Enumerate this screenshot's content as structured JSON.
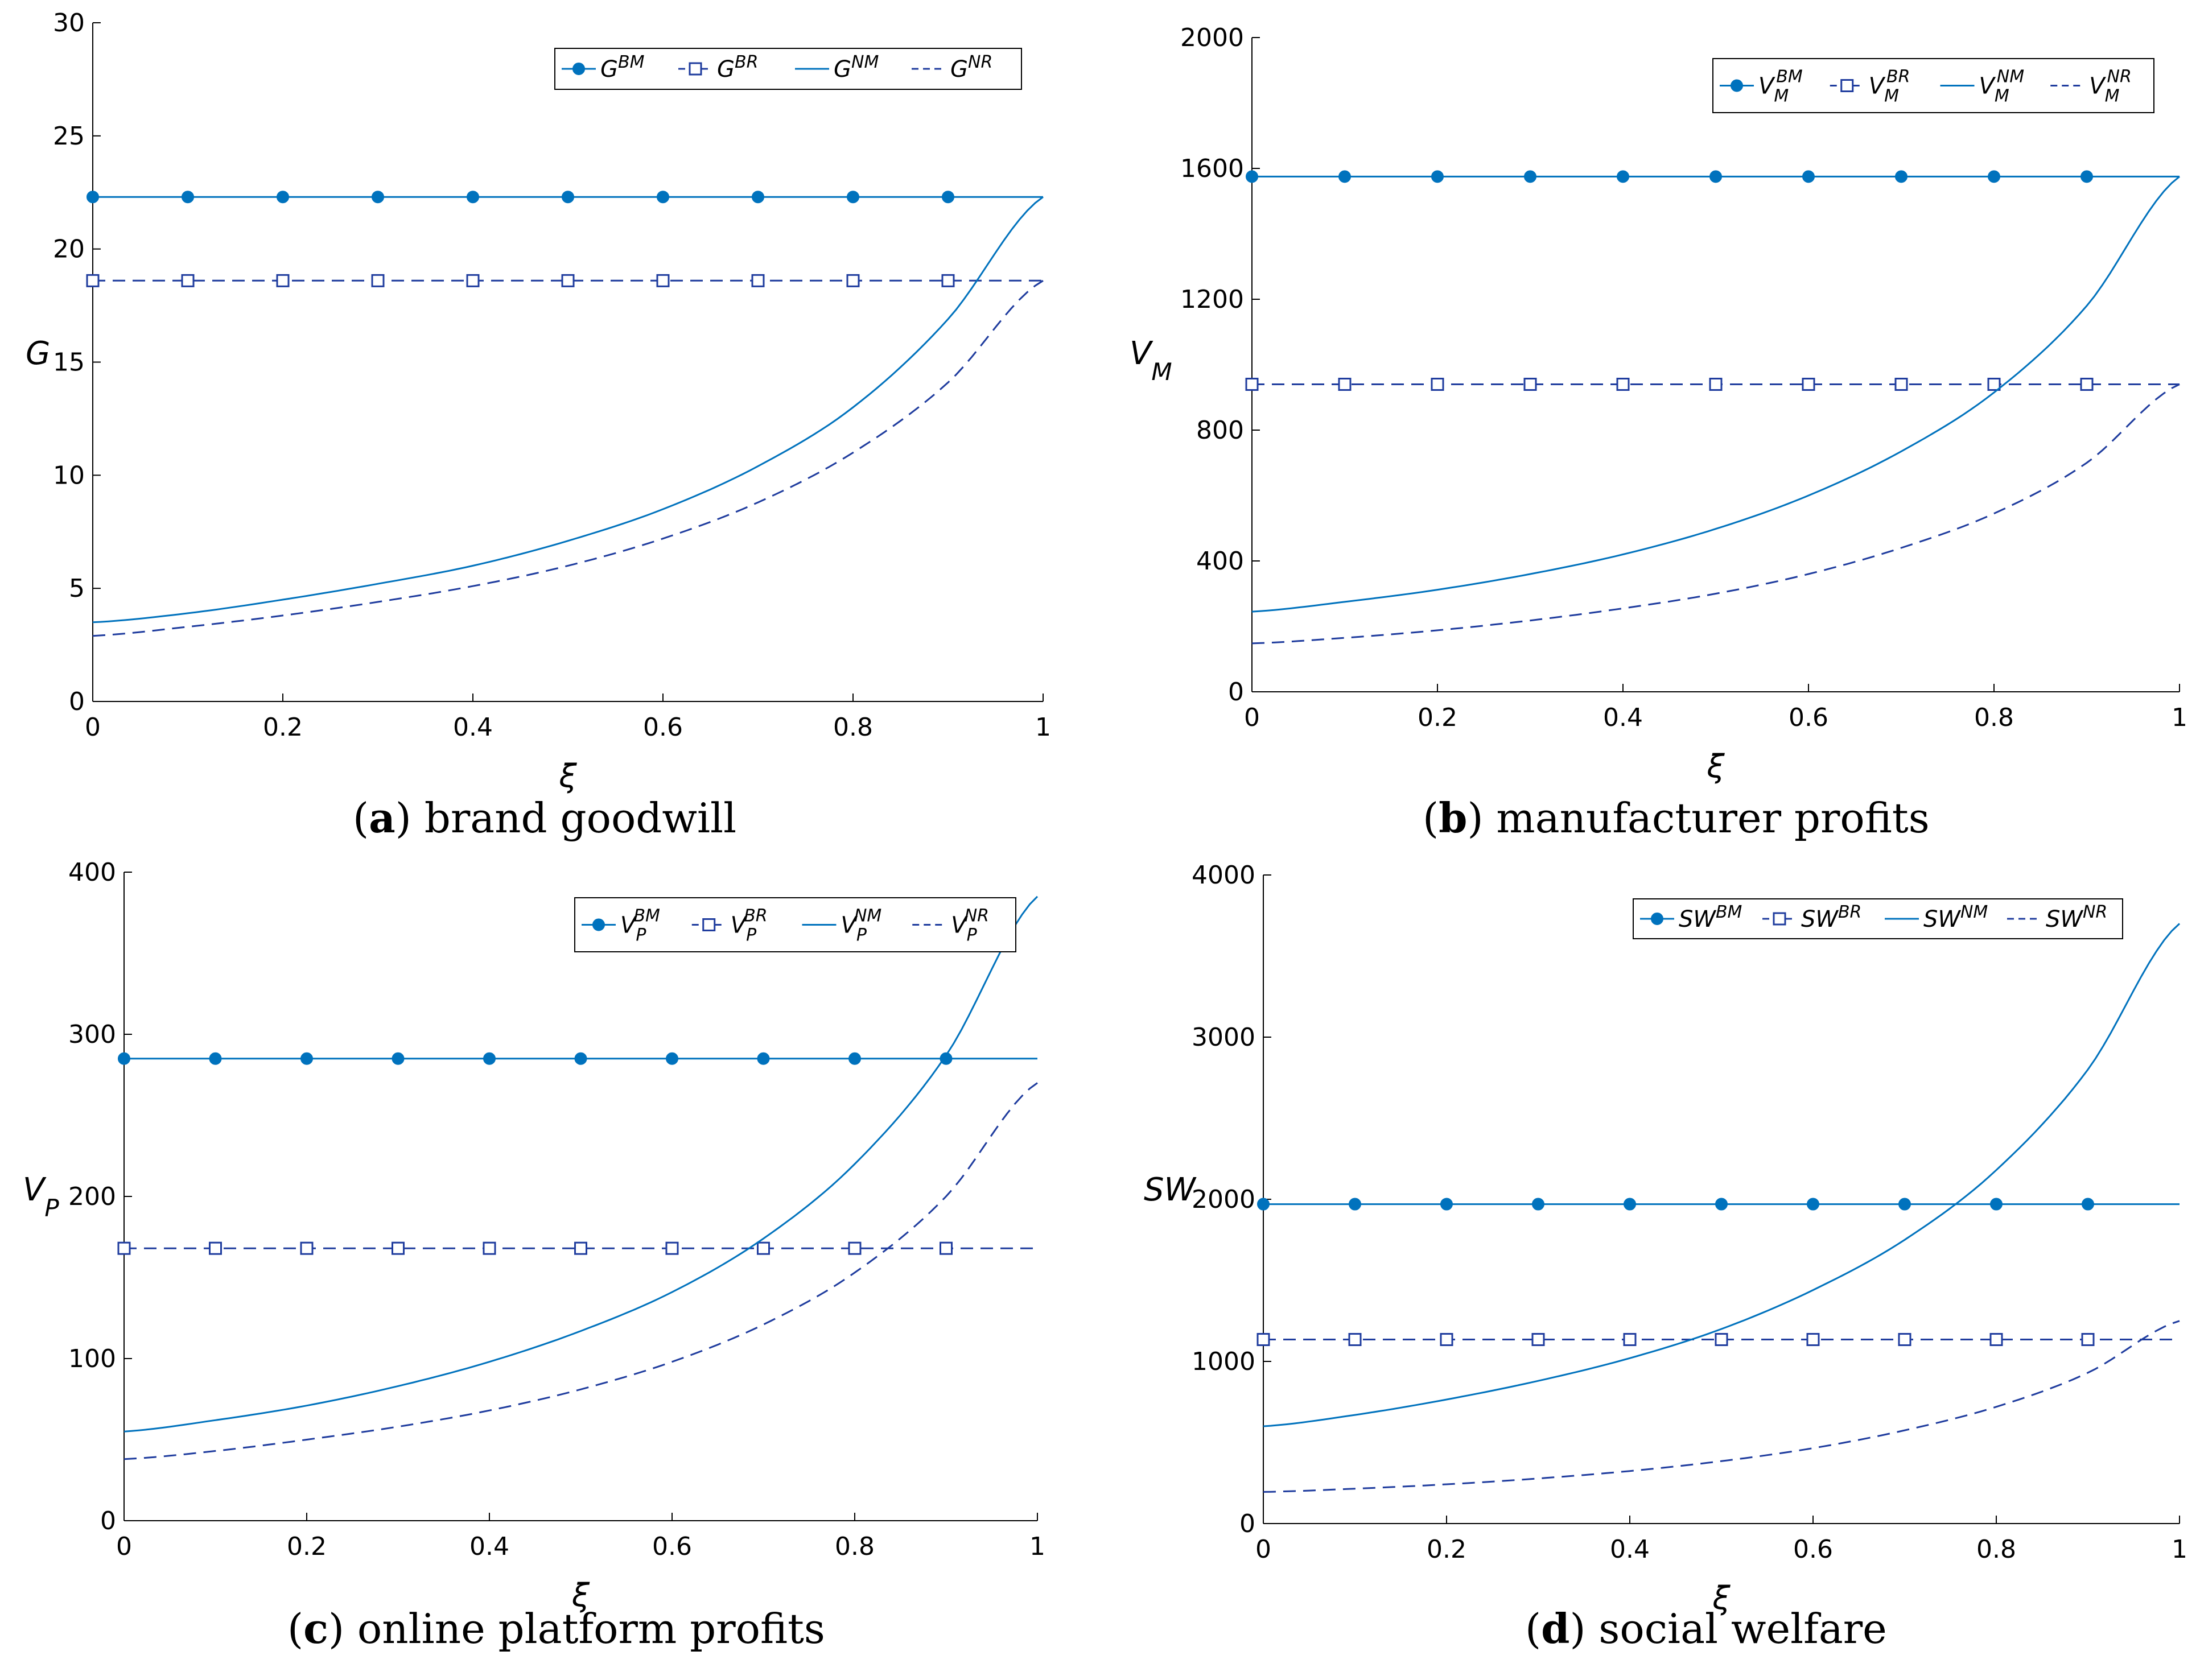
{
  "colors": {
    "series_solid": "#0072BD",
    "series_dashed": "#1F3C9E",
    "axis": "#000000"
  },
  "chart_data": [
    {
      "id": "a",
      "type": "line",
      "caption_letter": "a",
      "caption_text": " brand goodwill",
      "xlabel": "ξ",
      "ylabel": "G",
      "ylabel_sub": "",
      "xlim": [
        0,
        1
      ],
      "ylim": [
        0,
        30
      ],
      "xticks": [
        "0",
        "0.2",
        "0.4",
        "0.6",
        "0.8",
        "1"
      ],
      "yticks": [
        "0",
        "5",
        "10",
        "15",
        "20",
        "25",
        "30"
      ],
      "legend_location": "top-right",
      "series": [
        {
          "name": "BM",
          "legend_base": "G",
          "legend_sub": "",
          "legend_sup": "BM",
          "style": "solid-dot",
          "x": [
            0,
            1
          ],
          "y": [
            22.3,
            22.3
          ]
        },
        {
          "name": "BR",
          "legend_base": "G",
          "legend_sub": "",
          "legend_sup": "BR",
          "style": "dashed-square",
          "x": [
            0,
            1
          ],
          "y": [
            18.6,
            18.6
          ]
        },
        {
          "name": "NM",
          "legend_base": "G",
          "legend_sub": "",
          "legend_sup": "NM",
          "style": "solid",
          "x": [
            0,
            0.1,
            0.2,
            0.3,
            0.4,
            0.5,
            0.6,
            0.7,
            0.8,
            0.9,
            1.0
          ],
          "y": [
            3.5,
            3.9,
            4.5,
            5.2,
            6.0,
            7.1,
            8.5,
            10.4,
            13.0,
            16.9,
            22.3
          ]
        },
        {
          "name": "NR",
          "legend_base": "G",
          "legend_sub": "",
          "legend_sup": "NR",
          "style": "dashed",
          "x": [
            0,
            0.1,
            0.2,
            0.3,
            0.4,
            0.5,
            0.6,
            0.7,
            0.8,
            0.9,
            1.0
          ],
          "y": [
            2.9,
            3.3,
            3.8,
            4.4,
            5.1,
            6.0,
            7.2,
            8.8,
            11.0,
            14.1,
            18.6
          ]
        }
      ]
    },
    {
      "id": "b",
      "type": "line",
      "caption_letter": "b",
      "caption_text": " manufacturer profits",
      "xlabel": "ξ",
      "ylabel": "V",
      "ylabel_sub": "M",
      "xlim": [
        0,
        1
      ],
      "ylim": [
        0,
        2000
      ],
      "xticks": [
        "0",
        "0.2",
        "0.4",
        "0.6",
        "0.8",
        "1"
      ],
      "yticks": [
        "0",
        "400",
        "800",
        "1200",
        "1600",
        "2000"
      ],
      "legend_location": "top-right",
      "series": [
        {
          "name": "BM",
          "legend_base": "V",
          "legend_sub": "M",
          "legend_sup": "BM",
          "style": "solid-dot",
          "x": [
            0,
            1
          ],
          "y": [
            1575,
            1575
          ]
        },
        {
          "name": "BR",
          "legend_base": "V",
          "legend_sub": "M",
          "legend_sup": "BR",
          "style": "dashed-square",
          "x": [
            0,
            1
          ],
          "y": [
            940,
            940
          ]
        },
        {
          "name": "NM",
          "legend_base": "V",
          "legend_sub": "M",
          "legend_sup": "NM",
          "style": "solid",
          "x": [
            0,
            0.1,
            0.2,
            0.3,
            0.4,
            0.5,
            0.6,
            0.7,
            0.8,
            0.9,
            1.0
          ],
          "y": [
            245,
            275,
            312,
            360,
            420,
            498,
            600,
            735,
            915,
            1180,
            1575
          ]
        },
        {
          "name": "NR",
          "legend_base": "V",
          "legend_sub": "M",
          "legend_sup": "NR",
          "style": "dashed",
          "x": [
            0,
            0.1,
            0.2,
            0.3,
            0.4,
            0.5,
            0.6,
            0.7,
            0.8,
            0.9,
            1.0
          ],
          "y": [
            148,
            165,
            188,
            218,
            255,
            300,
            360,
            440,
            545,
            700,
            940
          ]
        }
      ]
    },
    {
      "id": "c",
      "type": "line",
      "caption_letter": "c",
      "caption_text": " online platform profits",
      "xlabel": "ξ",
      "ylabel": "V",
      "ylabel_sub": "P",
      "xlim": [
        0,
        1
      ],
      "ylim": [
        0,
        400
      ],
      "xticks": [
        "0",
        "0.2",
        "0.4",
        "0.6",
        "0.8",
        "1"
      ],
      "yticks": [
        "0",
        "100",
        "200",
        "300",
        "400"
      ],
      "legend_location": "top-right",
      "series": [
        {
          "name": "BM",
          "legend_base": "V",
          "legend_sub": "P",
          "legend_sup": "BM",
          "style": "solid-dot",
          "x": [
            0,
            1
          ],
          "y": [
            285,
            285
          ]
        },
        {
          "name": "BR",
          "legend_base": "V",
          "legend_sub": "P",
          "legend_sup": "BR",
          "style": "dashed-square",
          "x": [
            0,
            1
          ],
          "y": [
            168,
            168
          ]
        },
        {
          "name": "NM",
          "legend_base": "V",
          "legend_sub": "P",
          "legend_sup": "NM",
          "style": "solid",
          "x": [
            0,
            0.1,
            0.2,
            0.3,
            0.4,
            0.5,
            0.6,
            0.7,
            0.8,
            0.9,
            1.0
          ],
          "y": [
            55,
            62,
            71,
            83,
            98,
            117,
            141,
            174,
            220,
            287,
            385
          ]
        },
        {
          "name": "NR",
          "legend_base": "V",
          "legend_sub": "P",
          "legend_sup": "NR",
          "style": "dashed",
          "x": [
            0,
            0.1,
            0.2,
            0.3,
            0.4,
            0.5,
            0.6,
            0.7,
            0.8,
            0.9,
            1.0
          ],
          "y": [
            38,
            43,
            50,
            58,
            68,
            81,
            98,
            121,
            153,
            200,
            270
          ]
        }
      ]
    },
    {
      "id": "d",
      "type": "line",
      "caption_letter": "d",
      "caption_text": " social welfare",
      "xlabel": "ξ",
      "ylabel": "SW",
      "ylabel_sub": "",
      "xlim": [
        0,
        1
      ],
      "ylim": [
        0,
        4000
      ],
      "xticks": [
        "0",
        "0.2",
        "0.4",
        "0.6",
        "0.8",
        "1"
      ],
      "yticks": [
        "0",
        "1000",
        "2000",
        "3000",
        "4000"
      ],
      "legend_location": "top-right",
      "series": [
        {
          "name": "BM",
          "legend_base": "SW",
          "legend_sub": "",
          "legend_sup": "BM",
          "style": "solid-dot",
          "x": [
            0,
            1
          ],
          "y": [
            1970,
            1970
          ]
        },
        {
          "name": "BR",
          "legend_base": "SW",
          "legend_sub": "",
          "legend_sup": "BR",
          "style": "dashed-square",
          "x": [
            0,
            1
          ],
          "y": [
            1135,
            1135
          ]
        },
        {
          "name": "NM",
          "legend_base": "SW",
          "legend_sub": "",
          "legend_sup": "NM",
          "style": "solid",
          "x": [
            0,
            0.1,
            0.2,
            0.3,
            0.4,
            0.5,
            0.6,
            0.7,
            0.8,
            0.9,
            1.0
          ],
          "y": [
            600,
            670,
            765,
            880,
            1020,
            1200,
            1440,
            1750,
            2180,
            2800,
            3700
          ]
        },
        {
          "name": "NR",
          "legend_base": "SW",
          "legend_sub": "",
          "legend_sup": "NR",
          "style": "dashed",
          "x": [
            0,
            0.1,
            0.2,
            0.3,
            0.4,
            0.5,
            0.6,
            0.7,
            0.8,
            0.9,
            1.0
          ],
          "y": [
            195,
            215,
            242,
            278,
            324,
            385,
            465,
            575,
            720,
            930,
            1250
          ]
        }
      ]
    }
  ]
}
